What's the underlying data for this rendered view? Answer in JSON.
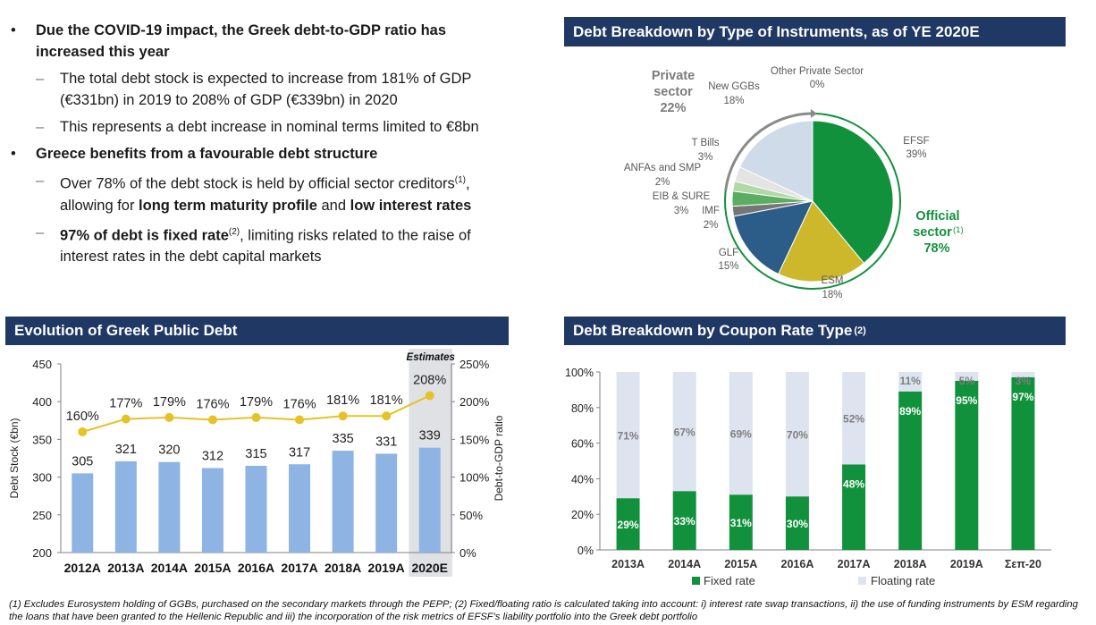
{
  "text_panel": {
    "b1": "Due the COVID-19 impact, the Greek debt-to-GDP ratio has increased this year",
    "b1_s1": "The total debt stock is expected to increase from 181% of GDP (€331bn) in 2019 to 208% of GDP (€339bn) in 2020",
    "b1_s2": "This represents a debt increase in nominal terms limited to €8bn",
    "b2": "Greece benefits from a favourable debt structure",
    "b2_s1_a": "Over 78% of the debt stock is held by official sector creditors",
    "b2_s1_sup": "(1)",
    "b2_s1_b": ", allowing for ",
    "b2_s1_c": "long term maturity profile",
    "b2_s1_d": " and ",
    "b2_s1_e": "low interest rates",
    "b2_s2_a": "97% of debt is fixed rate",
    "b2_s2_sup": "(2)",
    "b2_s2_b": ", limiting risks related to the raise of interest rates in the debt capital markets"
  },
  "titles": {
    "instruments": "Debt Breakdown by Type of Instruments, as of YE 2020E",
    "evolution": "Evolution of Greek Public Debt",
    "coupon": "Debt Breakdown by Coupon Rate Type",
    "coupon_sup": "(2)"
  },
  "colors": {
    "navy": "#1f3864",
    "bar_blue": "#8eb4e3",
    "line_yellow": "#e6c229",
    "green": "#12913d",
    "light_fill": "#dde4f0",
    "estimate_bg": "#dfe1e4"
  },
  "chart_data": [
    {
      "type": "pie",
      "title": "Debt Breakdown by Type of Instruments, as of YE 2020E",
      "slices": [
        {
          "name": "EFSF",
          "value": 39,
          "color": "#12913d"
        },
        {
          "name": "ESM",
          "value": 18,
          "color": "#cdb82c"
        },
        {
          "name": "GLF",
          "value": 15,
          "color": "#2c5d88"
        },
        {
          "name": "IMF",
          "value": 2,
          "color": "#767676"
        },
        {
          "name": "EIB & SURE",
          "value": 3,
          "color": "#5aad63"
        },
        {
          "name": "ANFAs and SMP",
          "value": 2,
          "color": "#b1d8a5"
        },
        {
          "name": "T Bills",
          "value": 3,
          "color": "#e4e4e4"
        },
        {
          "name": "New GGBs",
          "value": 18,
          "color": "#cfdbe9"
        },
        {
          "name": "Other Private Sector",
          "value": 0,
          "color": "#e8eef5"
        }
      ],
      "slice_labels": [
        {
          "name": "EFSF",
          "pct": "39%"
        },
        {
          "name": "ESM",
          "pct": "18%"
        },
        {
          "name": "GLF",
          "pct": "15%"
        },
        {
          "name": "IMF",
          "pct": "2%"
        },
        {
          "name": "EIB & SURE",
          "pct": "3%"
        },
        {
          "name": "ANFAs and SMP",
          "pct": "2%"
        },
        {
          "name": "T Bills",
          "pct": "3%"
        },
        {
          "name": "New GGBs",
          "pct": "18%"
        },
        {
          "name": "Other Private Sector",
          "pct": "0%"
        }
      ],
      "groups": {
        "private": {
          "line1": "Private",
          "line2": "sector",
          "value": "22%"
        },
        "official": {
          "line1": "Official",
          "line2": "sector",
          "sup": "(1)",
          "value": "78%"
        }
      }
    },
    {
      "type": "bar+line",
      "title": "Evolution of Greek Public Debt",
      "categories": [
        "2012A",
        "2013A",
        "2014A",
        "2015A",
        "2016A",
        "2017A",
        "2018A",
        "2019A",
        "2020E"
      ],
      "series": [
        {
          "name": "Debt Stock (€bn)",
          "type": "bar",
          "axis": "left",
          "values": [
            305,
            321,
            320,
            312,
            315,
            317,
            335,
            331,
            339
          ]
        },
        {
          "name": "Debt-to-GDP ratio",
          "type": "line",
          "axis": "right",
          "values": [
            160,
            177,
            179,
            176,
            179,
            176,
            181,
            181,
            208
          ],
          "labels": [
            "160%",
            "177%",
            "179%",
            "176%",
            "179%",
            "176%",
            "181%",
            "181%",
            "208%"
          ]
        }
      ],
      "ylabel": "Debt Stock (€bn)",
      "y2label": "Debt-to-GDP ratio",
      "ylim": [
        200,
        450
      ],
      "yticks": [
        "200",
        "250",
        "300",
        "350",
        "400",
        "450"
      ],
      "y2lim": [
        0,
        250
      ],
      "y2ticks": [
        "0%",
        "50%",
        "100%",
        "150%",
        "200%",
        "250%"
      ],
      "annotation": "Estimates"
    },
    {
      "type": "stacked-bar",
      "title": "Debt Breakdown by Coupon Rate Type",
      "categories": [
        "2013A",
        "2014A",
        "2015A",
        "2016A",
        "2017A",
        "2018A",
        "2019A",
        "Σεπ-20"
      ],
      "series": [
        {
          "name": "Fixed rate",
          "values": [
            29,
            33,
            31,
            30,
            48,
            89,
            95,
            97
          ],
          "labels": [
            "29%",
            "33%",
            "31%",
            "30%",
            "48%",
            "89%",
            "95%",
            "97%"
          ]
        },
        {
          "name": "Floating rate",
          "values": [
            71,
            67,
            69,
            70,
            52,
            11,
            5,
            3
          ],
          "labels": [
            "71%",
            "67%",
            "69%",
            "70%",
            "52%",
            "11%",
            "5%",
            "3%"
          ]
        }
      ],
      "ylim": [
        0,
        100
      ],
      "yticks": [
        "0%",
        "20%",
        "40%",
        "60%",
        "80%",
        "100%"
      ],
      "legend": [
        "Fixed rate",
        "Floating rate"
      ]
    }
  ],
  "footnote": "(1) Excludes Eurosystem holding of GGBs, purchased on the secondary markets through the PEPP; (2) Fixed/floating ratio is calculated taking into account: i) interest rate swap transactions, ii) the use of funding instruments by ESM regarding the loans that have been granted to the Hellenic Republic and iii) the incorporation of the risk metrics of EFSF's liability portfolio into the Greek debt portfolio"
}
